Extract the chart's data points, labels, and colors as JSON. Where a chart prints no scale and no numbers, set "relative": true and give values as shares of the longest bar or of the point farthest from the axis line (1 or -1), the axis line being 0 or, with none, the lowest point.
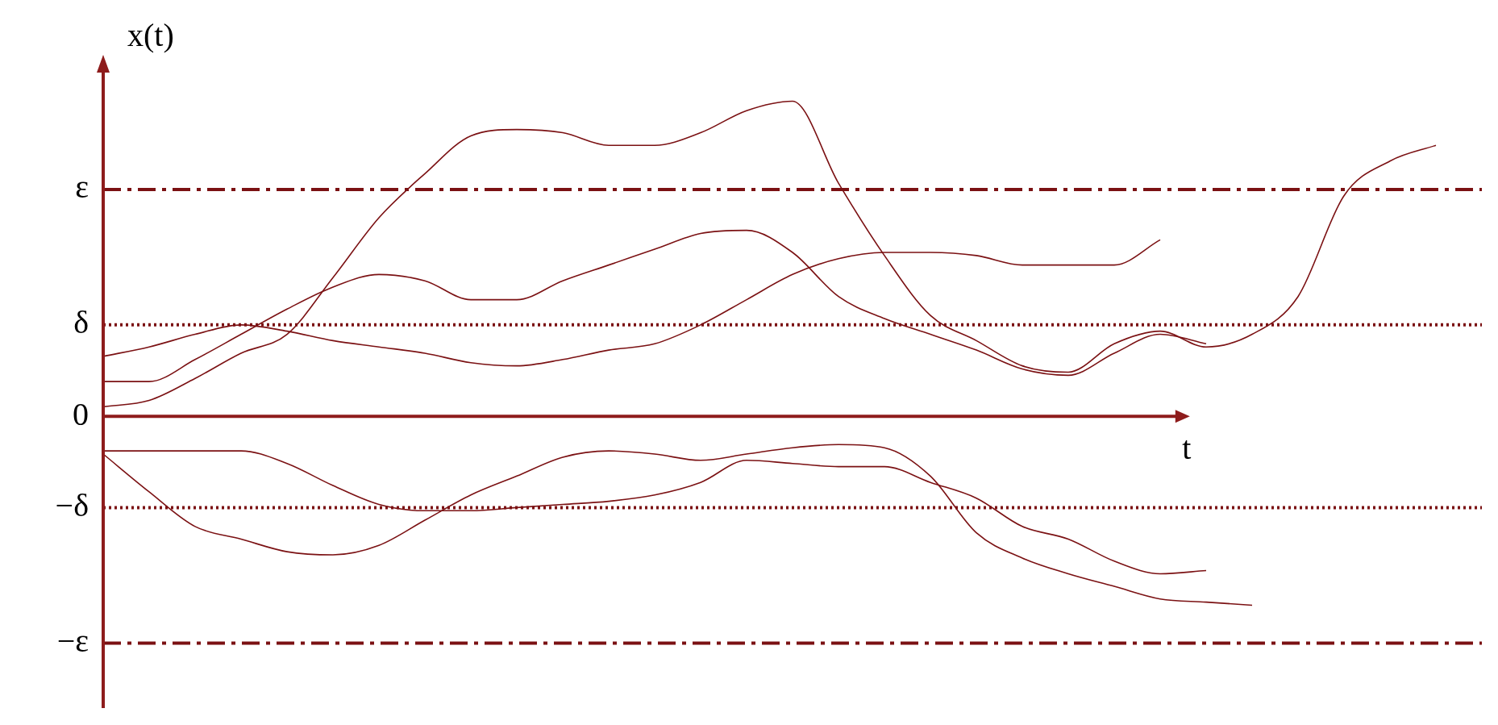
{
  "chart_data": {
    "type": "line",
    "xlabel": "t",
    "ylabel": "x(t)",
    "relative": true,
    "tick_labels": false,
    "marker": "none",
    "line_style": "solid",
    "categories": [
      null,
      null,
      null,
      null,
      null,
      null,
      null,
      null,
      null,
      null,
      null,
      null,
      null,
      null,
      null,
      null,
      null,
      null,
      null,
      null,
      null,
      null,
      null,
      null,
      null,
      null,
      null,
      null,
      null,
      null,
      null
    ],
    "series": [
      {
        "color": "#7b1113",
        "values": [
          0.03,
          0.05,
          0.12,
          0.2,
          0.26,
          0.44,
          0.63,
          0.77,
          0.89,
          0.91,
          0.9,
          0.86,
          0.86,
          0.9,
          0.97,
          1.0,
          0.74,
          0.51,
          0.32,
          0.24,
          0.16,
          0.14,
          0.23,
          0.27,
          0.22,
          0.26,
          0.38,
          0.7,
          0.81,
          0.86,
          null
        ]
      },
      {
        "color": "#7b1113",
        "values": [
          0.11,
          0.11,
          0.18,
          0.26,
          0.34,
          0.41,
          0.45,
          0.43,
          0.37,
          0.37,
          0.43,
          0.48,
          0.53,
          0.58,
          0.59,
          0.52,
          0.38,
          0.31,
          0.26,
          0.21,
          0.15,
          0.13,
          0.2,
          0.26,
          0.23,
          null,
          null,
          null,
          null,
          null,
          null
        ]
      },
      {
        "color": "#7b1113",
        "values": [
          0.19,
          0.22,
          0.26,
          0.29,
          0.27,
          0.24,
          0.22,
          0.2,
          0.17,
          0.16,
          0.18,
          0.21,
          0.23,
          0.29,
          0.37,
          0.45,
          0.5,
          0.52,
          0.52,
          0.51,
          0.48,
          0.48,
          0.48,
          0.56,
          null,
          null,
          null,
          null,
          null,
          null,
          null
        ]
      },
      {
        "color": "#7b1113",
        "values": [
          -0.11,
          -0.11,
          -0.11,
          -0.11,
          -0.15,
          -0.22,
          -0.28,
          -0.3,
          -0.3,
          -0.29,
          -0.28,
          -0.27,
          -0.25,
          -0.21,
          -0.14,
          -0.15,
          -0.16,
          -0.16,
          -0.21,
          -0.26,
          -0.35,
          -0.39,
          -0.46,
          -0.5,
          -0.49,
          null,
          null,
          null,
          null,
          null,
          null
        ]
      },
      {
        "color": "#7b1113",
        "values": [
          -0.12,
          -0.24,
          -0.35,
          -0.39,
          -0.43,
          -0.44,
          -0.41,
          -0.33,
          -0.25,
          -0.19,
          -0.13,
          -0.11,
          -0.12,
          -0.14,
          -0.12,
          -0.1,
          -0.09,
          -0.1,
          -0.19,
          -0.37,
          -0.45,
          -0.5,
          -0.54,
          -0.58,
          -0.59,
          -0.6,
          null,
          null,
          null,
          null,
          null
        ]
      }
    ],
    "ref_lines": [
      {
        "axis": "y",
        "value": 0.72,
        "label": "ε",
        "color": "#7b1113",
        "line_style": "dashed"
      },
      {
        "axis": "y",
        "value": 0.29,
        "label": "δ",
        "color": "#7b1113",
        "line_style": "dotted"
      },
      {
        "axis": "y",
        "value": -0.29,
        "label": "−δ",
        "color": "#7b1113",
        "line_style": "dotted"
      },
      {
        "axis": "y",
        "value": -0.72,
        "label": "−ε",
        "color": "#7b1113",
        "line_style": "dashed"
      }
    ],
    "annotations": [
      "0"
    ]
  }
}
